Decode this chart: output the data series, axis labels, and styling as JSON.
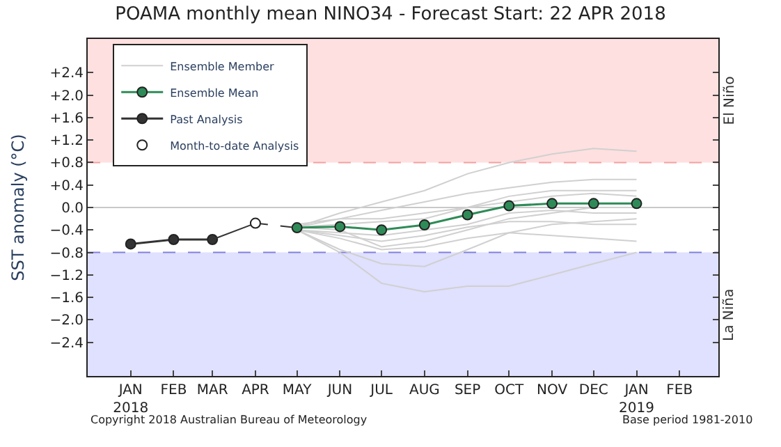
{
  "chart_data": {
    "type": "line",
    "title": "POAMA monthly mean NINO34 - Forecast Start: 22 APR 2018",
    "ylabel": "SST anomaly (°C)",
    "xlim": [
      "2017-12-01",
      "2019-03-01"
    ],
    "xticks": [
      {
        "value": "2018-01-01",
        "label": "JAN\n2018"
      },
      {
        "value": "2018-02-01",
        "label": "FEB"
      },
      {
        "value": "2018-03-01",
        "label": "MAR"
      },
      {
        "value": "2018-04-01",
        "label": "APR"
      },
      {
        "value": "2018-05-01",
        "label": "MAY"
      },
      {
        "value": "2018-06-01",
        "label": "JUN"
      },
      {
        "value": "2018-07-01",
        "label": "JUL"
      },
      {
        "value": "2018-08-01",
        "label": "AUG"
      },
      {
        "value": "2018-09-01",
        "label": "SEP"
      },
      {
        "value": "2018-10-01",
        "label": "OCT"
      },
      {
        "value": "2018-11-01",
        "label": "NOV"
      },
      {
        "value": "2018-12-01",
        "label": "DEC"
      },
      {
        "value": "2019-01-01",
        "label": "JAN\n2019"
      },
      {
        "value": "2019-02-01",
        "label": "FEB"
      }
    ],
    "ylim": [
      -3.0,
      3.0
    ],
    "yticks": [
      {
        "value": -2.4,
        "label": "−2.4"
      },
      {
        "value": -2.0,
        "label": "−2.0"
      },
      {
        "value": -1.6,
        "label": "−1.6"
      },
      {
        "value": -1.2,
        "label": "−1.2"
      },
      {
        "value": -0.8,
        "label": "−0.8"
      },
      {
        "value": -0.4,
        "label": "−0.4"
      },
      {
        "value": 0.0,
        "label": "0.0"
      },
      {
        "value": 0.4,
        "label": "+0.4"
      },
      {
        "value": 0.8,
        "label": "+0.8"
      },
      {
        "value": 1.2,
        "label": "+1.2"
      },
      {
        "value": 1.6,
        "label": "+1.6"
      },
      {
        "value": 2.0,
        "label": "+2.0"
      },
      {
        "value": 2.4,
        "label": "+2.4"
      }
    ],
    "grid": false,
    "legend": "top left",
    "bands": [
      {
        "axis": "y",
        "from": 0.8,
        "to": 3.0,
        "label": "El Niño",
        "color": "#ffe0e0"
      },
      {
        "axis": "y",
        "from": -3.0,
        "to": -0.8,
        "label": "La Niña",
        "color": "#e0e0ff"
      }
    ],
    "ref_lines": [
      {
        "axis": "y",
        "value": 0.8,
        "color": "#f4a0a0",
        "line_style": "dashed"
      },
      {
        "axis": "y",
        "value": -0.8,
        "color": "#8080e0",
        "line_style": "dashed"
      },
      {
        "axis": "y",
        "value": 0.0,
        "color": "#c8c8c8",
        "line_style": "solid"
      }
    ],
    "series": [
      {
        "name": "Ensemble Member",
        "color": "#d0d0d0",
        "marker": "none",
        "line_style": "solid",
        "x": [
          "2018-05-01",
          "2018-06-01",
          "2018-07-01",
          "2018-08-01",
          "2018-09-01",
          "2018-10-01",
          "2018-11-01",
          "2018-12-01",
          "2019-01-01"
        ],
        "values": [
          -0.35,
          -0.1,
          0.1,
          0.3,
          0.6,
          0.8,
          0.95,
          1.05,
          1.0
        ]
      },
      {
        "type": "line",
        "color": "#d0d0d0",
        "marker": "none",
        "line_style": "solid",
        "x": [
          "2018-05-01",
          "2018-06-01",
          "2018-07-01",
          "2018-08-01",
          "2018-09-01",
          "2018-10-01",
          "2018-11-01",
          "2018-12-01",
          "2019-01-01"
        ],
        "values": [
          -0.4,
          -0.8,
          -1.35,
          -1.5,
          -1.4,
          -1.4,
          -1.2,
          -1.0,
          -0.8
        ]
      },
      {
        "type": "line",
        "color": "#d0d0d0",
        "marker": "none",
        "line_style": "solid",
        "x": [
          "2018-05-01",
          "2018-06-01",
          "2018-07-01",
          "2018-08-01",
          "2018-09-01",
          "2018-10-01",
          "2018-11-01",
          "2018-12-01",
          "2019-01-01"
        ],
        "values": [
          -0.4,
          -0.75,
          -1.0,
          -1.05,
          -0.75,
          -0.45,
          -0.3,
          -0.25,
          -0.2
        ]
      },
      {
        "type": "line",
        "color": "#d0d0d0",
        "marker": "none",
        "line_style": "solid",
        "x": [
          "2018-05-01",
          "2018-06-01",
          "2018-07-01",
          "2018-08-01",
          "2018-09-01",
          "2018-10-01",
          "2018-11-01",
          "2018-12-01",
          "2019-01-01"
        ],
        "values": [
          -0.35,
          -0.2,
          -0.05,
          0.1,
          0.25,
          0.35,
          0.45,
          0.5,
          0.5
        ]
      },
      {
        "type": "line",
        "color": "#d0d0d0",
        "marker": "none",
        "line_style": "solid",
        "x": [
          "2018-05-01",
          "2018-06-01",
          "2018-07-01",
          "2018-08-01",
          "2018-09-01",
          "2018-10-01",
          "2018-11-01",
          "2018-12-01",
          "2019-01-01"
        ],
        "values": [
          -0.4,
          -0.5,
          -0.6,
          -0.5,
          -0.35,
          -0.25,
          -0.25,
          -0.3,
          -0.3
        ]
      },
      {
        "type": "line",
        "color": "#d0d0d0",
        "marker": "none",
        "line_style": "solid",
        "x": [
          "2018-05-01",
          "2018-06-01",
          "2018-07-01",
          "2018-08-01",
          "2018-09-01",
          "2018-10-01",
          "2018-11-01",
          "2018-12-01",
          "2019-01-01"
        ],
        "values": [
          -0.35,
          -0.4,
          -0.7,
          -0.6,
          -0.4,
          -0.2,
          -0.1,
          0.0,
          0.0
        ]
      },
      {
        "type": "line",
        "color": "#d0d0d0",
        "marker": "none",
        "line_style": "solid",
        "x": [
          "2018-05-01",
          "2018-06-01",
          "2018-07-01",
          "2018-08-01",
          "2018-09-01",
          "2018-10-01",
          "2018-11-01",
          "2018-12-01",
          "2019-01-01"
        ],
        "values": [
          -0.3,
          -0.2,
          -0.2,
          -0.1,
          0.0,
          0.2,
          0.3,
          0.3,
          0.3
        ]
      },
      {
        "type": "line",
        "color": "#d0d0d0",
        "marker": "none",
        "line_style": "solid",
        "x": [
          "2018-05-01",
          "2018-06-01",
          "2018-07-01",
          "2018-08-01",
          "2018-09-01",
          "2018-10-01",
          "2018-11-01",
          "2018-12-01",
          "2019-01-01"
        ],
        "values": [
          -0.4,
          -0.45,
          -0.5,
          -0.4,
          -0.3,
          -0.1,
          -0.05,
          -0.1,
          -0.1
        ]
      },
      {
        "type": "line",
        "color": "#d0d0d0",
        "marker": "none",
        "line_style": "solid",
        "x": [
          "2018-05-01",
          "2018-06-01",
          "2018-07-01",
          "2018-08-01",
          "2018-09-01",
          "2018-10-01",
          "2018-11-01",
          "2018-12-01",
          "2019-01-01"
        ],
        "values": [
          -0.35,
          -0.3,
          -0.25,
          -0.2,
          0.0,
          0.1,
          0.2,
          0.25,
          0.2
        ]
      },
      {
        "type": "line",
        "color": "#d0d0d0",
        "marker": "none",
        "line_style": "solid",
        "x": [
          "2018-05-01",
          "2018-06-01",
          "2018-07-01",
          "2018-08-01",
          "2018-09-01",
          "2018-10-01",
          "2018-11-01",
          "2018-12-01",
          "2019-01-01"
        ],
        "values": [
          -0.4,
          -0.55,
          -0.75,
          -0.7,
          -0.55,
          -0.45,
          -0.5,
          -0.55,
          -0.6
        ]
      },
      {
        "name": "Ensemble Mean",
        "type": "line",
        "color": "#2e8b57",
        "marker": "circle",
        "line_style": "solid",
        "x": [
          "2018-05-01",
          "2018-06-01",
          "2018-07-01",
          "2018-08-01",
          "2018-09-01",
          "2018-10-01",
          "2018-11-01",
          "2018-12-01",
          "2019-01-01"
        ],
        "values": [
          -0.36,
          -0.34,
          -0.4,
          -0.31,
          -0.13,
          0.03,
          0.07,
          0.07,
          0.07
        ]
      },
      {
        "name": "Past Analysis",
        "type": "line",
        "color": "#333333",
        "marker": "circle",
        "line_style": "solid",
        "x": [
          "2018-01-01",
          "2018-02-01",
          "2018-03-01"
        ],
        "values": [
          -0.65,
          -0.57,
          -0.57
        ]
      },
      {
        "type": "line",
        "color": "#333333",
        "marker": "none",
        "line_style": "solid",
        "x": [
          "2018-03-01",
          "2018-04-01"
        ],
        "values": [
          -0.57,
          -0.28
        ]
      },
      {
        "type": "line",
        "color": "#333333",
        "marker": "none",
        "line_style": "dashed",
        "x": [
          "2018-04-01",
          "2018-05-01"
        ],
        "values": [
          -0.28,
          -0.36
        ]
      },
      {
        "name": "Month-to-date Analysis",
        "type": "scatter",
        "color": "#ffffff",
        "marker": "circle",
        "x": [
          "2018-04-01"
        ],
        "values": [
          -0.28
        ]
      }
    ],
    "annotations": [
      "Copyright 2018 Australian Bureau of Meteorology",
      "Base period 1981-2010"
    ]
  }
}
